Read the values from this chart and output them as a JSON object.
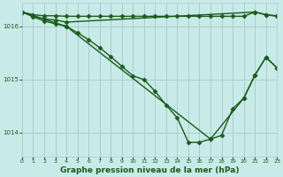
{
  "bg_color": "#c8eae8",
  "grid_color": "#a8d0cc",
  "line_color": "#1a5c1a",
  "xlabel": "Graphe pression niveau de la mer (hPa)",
  "xlabel_fontsize": 6.5,
  "ylim": [
    1013.55,
    1016.45
  ],
  "xlim": [
    0,
    23
  ],
  "yticks": [
    1014,
    1015,
    1016
  ],
  "xticks": [
    0,
    1,
    2,
    3,
    4,
    5,
    6,
    7,
    8,
    9,
    10,
    11,
    12,
    13,
    14,
    15,
    16,
    17,
    18,
    19,
    20,
    21,
    22,
    23
  ],
  "line1_x": [
    0,
    1,
    2,
    3,
    4,
    5,
    6,
    7,
    8,
    9,
    10,
    11,
    12,
    13,
    14,
    15,
    16,
    17,
    18,
    19,
    20,
    21,
    22,
    23
  ],
  "line1_y": [
    1016.27,
    1016.22,
    1016.2,
    1016.2,
    1016.19,
    1016.19,
    1016.19,
    1016.19,
    1016.19,
    1016.19,
    1016.19,
    1016.19,
    1016.19,
    1016.19,
    1016.19,
    1016.19,
    1016.19,
    1016.19,
    1016.19,
    1016.19,
    1016.19,
    1016.27,
    1016.22,
    1016.2
  ],
  "line2_x": [
    0,
    1,
    2,
    3,
    4,
    21,
    22,
    23
  ],
  "line2_y": [
    1016.27,
    1016.2,
    1016.14,
    1016.12,
    1016.08,
    1016.27,
    1016.22,
    1016.19
  ],
  "line3_x": [
    0,
    1,
    2,
    3,
    4,
    5,
    6,
    7,
    8,
    9,
    10,
    11,
    12,
    13,
    14,
    15,
    16,
    17,
    18,
    19,
    20,
    21,
    22,
    23
  ],
  "line3_y": [
    1016.27,
    1016.18,
    1016.1,
    1016.05,
    1016.0,
    1015.88,
    1015.75,
    1015.6,
    1015.43,
    1015.25,
    1015.07,
    1015.0,
    1014.78,
    1014.52,
    1014.28,
    1013.82,
    1013.82,
    1013.88,
    1013.95,
    1014.45,
    1014.65,
    1015.08,
    1015.42,
    1015.22
  ],
  "line4_x": [
    0,
    4,
    17,
    20,
    21,
    22,
    23
  ],
  "line4_y": [
    1016.27,
    1016.0,
    1013.88,
    1014.65,
    1015.08,
    1015.42,
    1015.22
  ]
}
